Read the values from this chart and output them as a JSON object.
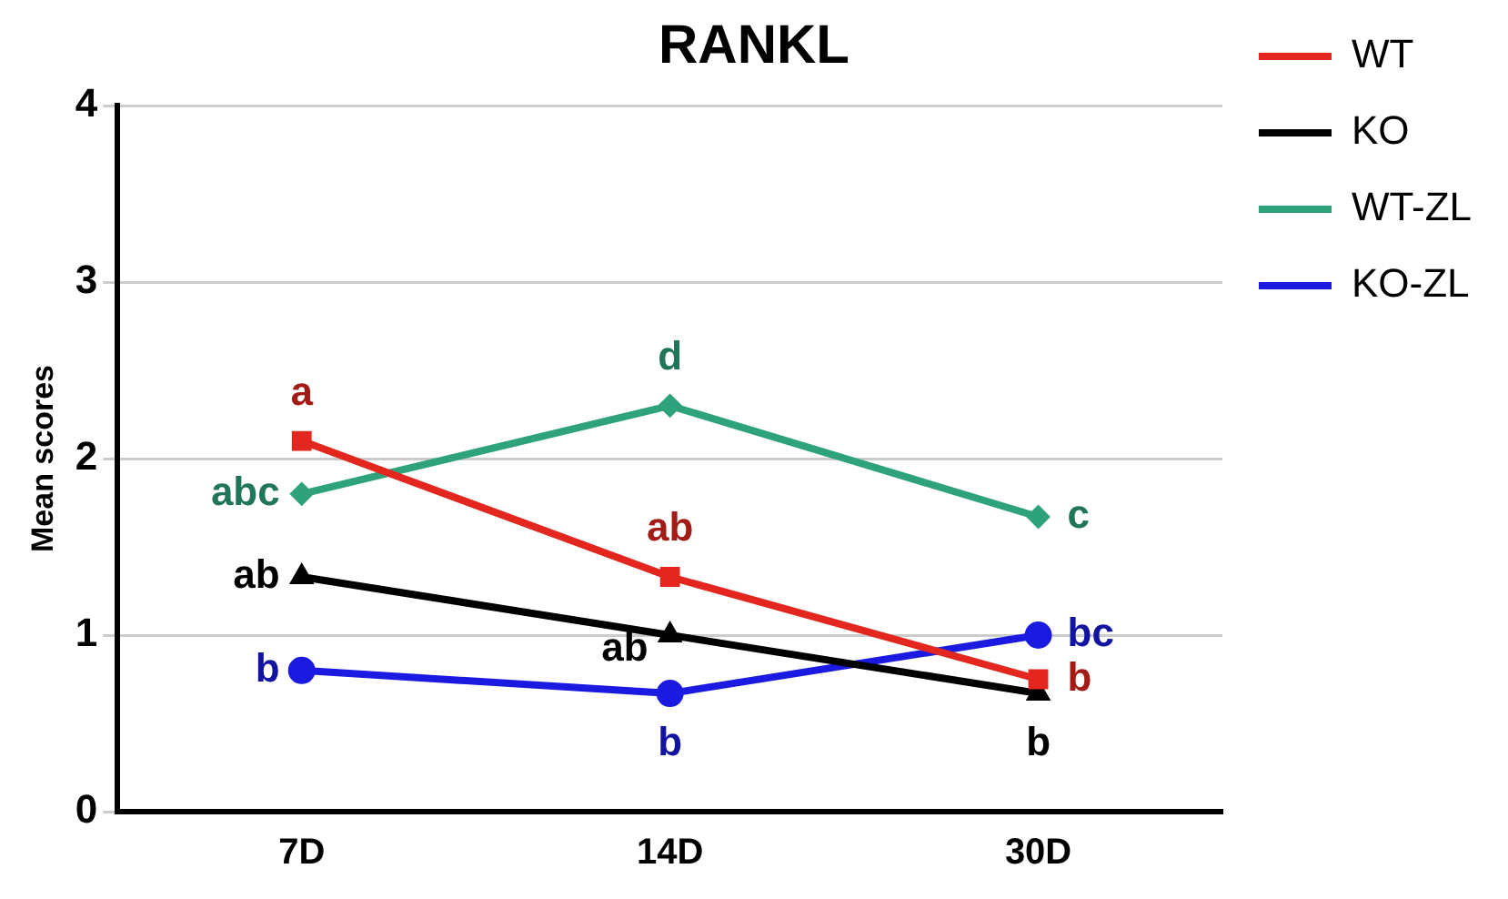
{
  "chart_data": {
    "type": "line",
    "title": "RANKL",
    "ylabel": "Mean scores",
    "categories": [
      "7D",
      "14D",
      "30D"
    ],
    "series": [
      {
        "name": "WT",
        "color": "#e3261e",
        "marker": "square",
        "values": [
          2.1,
          1.33,
          0.75
        ]
      },
      {
        "name": "KO",
        "color": "#000000",
        "marker": "triangle",
        "values": [
          1.33,
          1.0,
          0.67
        ]
      },
      {
        "name": "WT-ZL",
        "color": "#2ea27c",
        "marker": "diamond",
        "values": [
          1.8,
          2.3,
          1.67
        ]
      },
      {
        "name": "KO-ZL",
        "color": "#1a1ae0",
        "marker": "circle",
        "values": [
          0.8,
          0.67,
          1.0
        ]
      }
    ],
    "ylim": [
      0,
      4
    ],
    "yticks": [
      0,
      1,
      2,
      3,
      4
    ],
    "grid": "y",
    "legend": "right",
    "line_style": "solid",
    "annotations": [
      {
        "text": "a",
        "x": "7D",
        "y": 2.1
      },
      {
        "text": "abc",
        "x": "7D",
        "y": 1.8
      },
      {
        "text": "ab",
        "x": "7D",
        "y": 1.33
      },
      {
        "text": "b",
        "x": "7D",
        "y": 0.8
      },
      {
        "text": "d",
        "x": "14D",
        "y": 2.3
      },
      {
        "text": "ab",
        "x": "14D",
        "y": 1.33
      },
      {
        "text": "ab",
        "x": "14D",
        "y": 1.0
      },
      {
        "text": "b",
        "x": "14D",
        "y": 0.67
      },
      {
        "text": "c",
        "x": "30D",
        "y": 1.67
      },
      {
        "text": "bc",
        "x": "30D",
        "y": 1.0
      },
      {
        "text": "b",
        "x": "30D",
        "y": 0.75
      },
      {
        "text": "b",
        "x": "30D",
        "y": 0.67
      }
    ]
  }
}
